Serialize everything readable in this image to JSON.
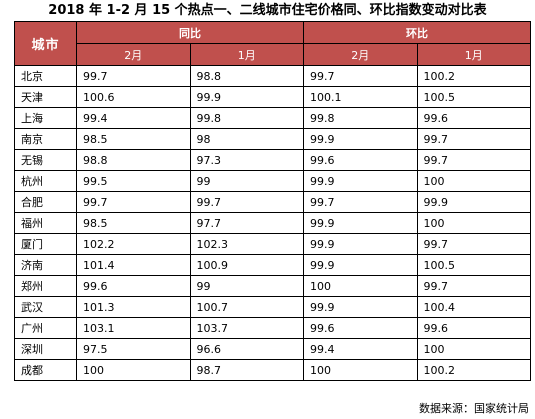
{
  "title": "2018 年 1-2 月 15 个热点一、二线城市住宅价格同、环比指数变动对比表",
  "table": {
    "city_header": "城市",
    "groups": [
      "同比",
      "环比"
    ],
    "months": [
      "2月",
      "1月",
      "2月",
      "1月"
    ],
    "rows": [
      {
        "city": "北京",
        "values": [
          "99.7",
          "98.8",
          "99.7",
          "100.2"
        ]
      },
      {
        "city": "天津",
        "values": [
          "100.6",
          "99.9",
          "100.1",
          "100.5"
        ]
      },
      {
        "city": "上海",
        "values": [
          "99.4",
          "99.8",
          "99.8",
          "99.6"
        ]
      },
      {
        "city": "南京",
        "values": [
          "98.5",
          "98",
          "99.9",
          "99.7"
        ]
      },
      {
        "city": "无锡",
        "values": [
          "98.8",
          "97.3",
          "99.6",
          "99.7"
        ]
      },
      {
        "city": "杭州",
        "values": [
          "99.5",
          "99",
          "99.9",
          "100"
        ]
      },
      {
        "city": "合肥",
        "values": [
          "99.7",
          "99.7",
          "99.7",
          "99.9"
        ]
      },
      {
        "city": "福州",
        "values": [
          "98.5",
          "97.7",
          "99.9",
          "100"
        ]
      },
      {
        "city": "厦门",
        "values": [
          "102.2",
          "102.3",
          "99.9",
          "99.7"
        ]
      },
      {
        "city": "济南",
        "values": [
          "101.4",
          "100.9",
          "99.9",
          "100.5"
        ]
      },
      {
        "city": "郑州",
        "values": [
          "99.6",
          "99",
          "100",
          "99.7"
        ]
      },
      {
        "city": "武汉",
        "values": [
          "101.3",
          "100.7",
          "99.9",
          "100.4"
        ]
      },
      {
        "city": "广州",
        "values": [
          "103.1",
          "103.7",
          "99.6",
          "99.6"
        ]
      },
      {
        "city": "深圳",
        "values": [
          "97.5",
          "96.6",
          "99.4",
          "100"
        ]
      },
      {
        "city": "成都",
        "values": [
          "100",
          "98.7",
          "100",
          "100.2"
        ]
      }
    ]
  },
  "source": "数据来源：国家统计局",
  "colors": {
    "header_bg": "#c0504d",
    "header_text": "#ffffff",
    "border": "#000000"
  }
}
